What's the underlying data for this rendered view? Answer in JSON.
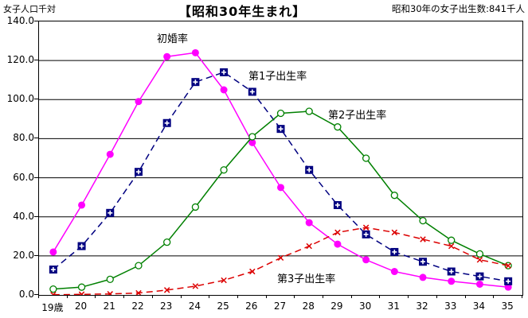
{
  "header": {
    "y_axis_unit": "女子人口千対",
    "title": "【昭和30年生まれ】",
    "note": "昭和30年の女子出生数:841千人"
  },
  "chart_data": {
    "type": "line",
    "title": "【昭和30年生まれ】",
    "ylabel": "女子人口千対",
    "annotation": "昭和30年の女子出生数:841千人",
    "categories": [
      "19歳",
      "20",
      "21",
      "22",
      "23",
      "24",
      "25",
      "26",
      "27",
      "28",
      "29",
      "30",
      "31",
      "32",
      "33",
      "34",
      "35"
    ],
    "xlabel": "",
    "ylim": [
      0,
      140
    ],
    "ytick_interval": 20,
    "ytick_labels": [
      "0.0",
      "20.0",
      "40.0",
      "60.0",
      "80.0",
      "100.0",
      "120.0",
      "140.0"
    ],
    "grid": "horizontal",
    "legend_position": "inline-annotations",
    "series": [
      {
        "name": "初婚率",
        "color": "#FF00FF",
        "line": "solid",
        "marker": "filled-circle",
        "values": [
          22,
          46,
          72,
          99,
          122,
          124,
          105,
          78,
          55,
          37,
          26,
          18,
          12,
          9,
          7,
          5.5,
          4
        ]
      },
      {
        "name": "第1子出生率",
        "color": "#000080",
        "line": "dashed",
        "marker": "square-plus",
        "values": [
          13,
          25,
          42,
          63,
          88,
          109,
          114,
          104,
          85,
          64,
          46,
          31,
          22,
          17,
          12,
          9.5,
          7
        ]
      },
      {
        "name": "第2子出生率",
        "color": "#008000",
        "line": "solid",
        "marker": "open-circle",
        "values": [
          3,
          4,
          8,
          15,
          27,
          45,
          64,
          81,
          93,
          94,
          86,
          70,
          51,
          38,
          28,
          21,
          15
        ]
      },
      {
        "name": "第3子出生率",
        "color": "#DC0000",
        "line": "dashed",
        "marker": "x-cross",
        "values": [
          0.1,
          0.3,
          0.5,
          1,
          2.5,
          4.5,
          7.5,
          12,
          19,
          25,
          32,
          34.5,
          32,
          28.5,
          25,
          18,
          15
        ]
      }
    ]
  }
}
